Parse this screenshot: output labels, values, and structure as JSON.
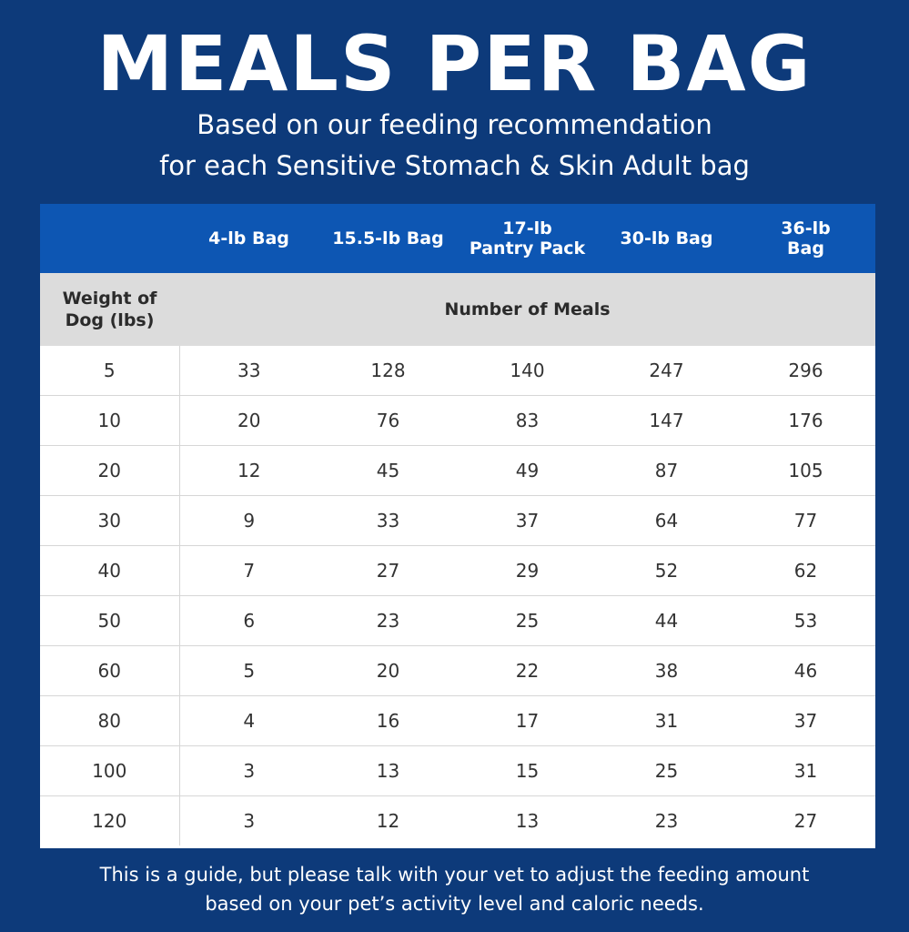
{
  "title": "MEALS PER BAG",
  "subtitle": {
    "line1": "Based on our feeding recommendation",
    "line2": "for each Sensitive Stomach & Skin Adult bag"
  },
  "chart_data": {
    "type": "table",
    "title": "MEALS PER BAG",
    "columns": [
      {
        "line1": "4-lb Bag",
        "line2": ""
      },
      {
        "line1": "15.5-lb Bag",
        "line2": ""
      },
      {
        "line1": "17-lb",
        "line2": "Pantry Pack"
      },
      {
        "line1": "30-lb Bag",
        "line2": ""
      },
      {
        "line1": "36-lb",
        "line2": "Bag"
      }
    ],
    "row_header": {
      "line1": "Weight of",
      "line2": "Dog (lbs)"
    },
    "value_header": "Number of Meals",
    "rows": [
      {
        "weight": "5",
        "values": [
          "33",
          "128",
          "140",
          "247",
          "296"
        ]
      },
      {
        "weight": "10",
        "values": [
          "20",
          "76",
          "83",
          "147",
          "176"
        ]
      },
      {
        "weight": "20",
        "values": [
          "12",
          "45",
          "49",
          "87",
          "105"
        ]
      },
      {
        "weight": "30",
        "values": [
          "9",
          "33",
          "37",
          "64",
          "77"
        ]
      },
      {
        "weight": "40",
        "values": [
          "7",
          "27",
          "29",
          "52",
          "62"
        ]
      },
      {
        "weight": "50",
        "values": [
          "6",
          "23",
          "25",
          "44",
          "53"
        ]
      },
      {
        "weight": "60",
        "values": [
          "5",
          "20",
          "22",
          "38",
          "46"
        ]
      },
      {
        "weight": "80",
        "values": [
          "4",
          "16",
          "17",
          "31",
          "37"
        ]
      },
      {
        "weight": "100",
        "values": [
          "3",
          "13",
          "15",
          "25",
          "31"
        ]
      },
      {
        "weight": "120",
        "values": [
          "3",
          "12",
          "13",
          "23",
          "27"
        ]
      }
    ]
  },
  "footer": {
    "line1": "This is a guide, but please talk with your vet to adjust the feeding amount",
    "line2": "based on your pet’s activity level and caloric needs."
  },
  "colors": {
    "background": "#0d3a7a",
    "header": "#0d56b3",
    "subheader": "#dcdcdc"
  }
}
